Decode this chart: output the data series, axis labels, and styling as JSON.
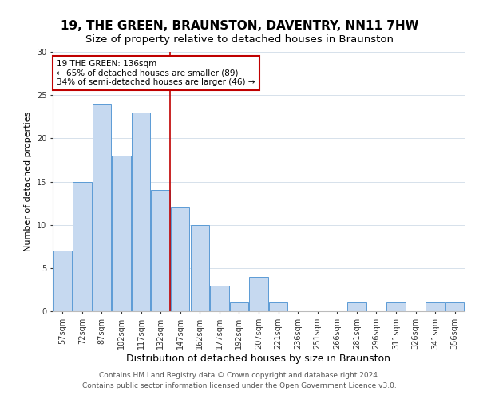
{
  "title": "19, THE GREEN, BRAUNSTON, DAVENTRY, NN11 7HW",
  "subtitle": "Size of property relative to detached houses in Braunston",
  "xlabel": "Distribution of detached houses by size in Braunston",
  "ylabel": "Number of detached properties",
  "bar_labels": [
    "57sqm",
    "72sqm",
    "87sqm",
    "102sqm",
    "117sqm",
    "132sqm",
    "147sqm",
    "162sqm",
    "177sqm",
    "192sqm",
    "207sqm",
    "221sqm",
    "236sqm",
    "251sqm",
    "266sqm",
    "281sqm",
    "296sqm",
    "311sqm",
    "326sqm",
    "341sqm",
    "356sqm"
  ],
  "bar_values": [
    7,
    15,
    24,
    18,
    23,
    14,
    12,
    10,
    3,
    1,
    4,
    1,
    0,
    0,
    0,
    1,
    0,
    1,
    0,
    1,
    1
  ],
  "bar_color": "#c6d9f0",
  "bar_edge_color": "#5b9bd5",
  "ref_line_color": "#c00000",
  "annotation_text": "19 THE GREEN: 136sqm\n← 65% of detached houses are smaller (89)\n34% of semi-detached houses are larger (46) →",
  "annotation_box_color": "white",
  "annotation_box_edge": "#c00000",
  "ylim": [
    0,
    30
  ],
  "yticks": [
    0,
    5,
    10,
    15,
    20,
    25,
    30
  ],
  "footer1": "Contains HM Land Registry data © Crown copyright and database right 2024.",
  "footer2": "Contains public sector information licensed under the Open Government Licence v3.0.",
  "title_fontsize": 11,
  "subtitle_fontsize": 9.5,
  "xlabel_fontsize": 9,
  "ylabel_fontsize": 8,
  "tick_fontsize": 7,
  "annotation_fontsize": 7.5,
  "footer_fontsize": 6.5
}
